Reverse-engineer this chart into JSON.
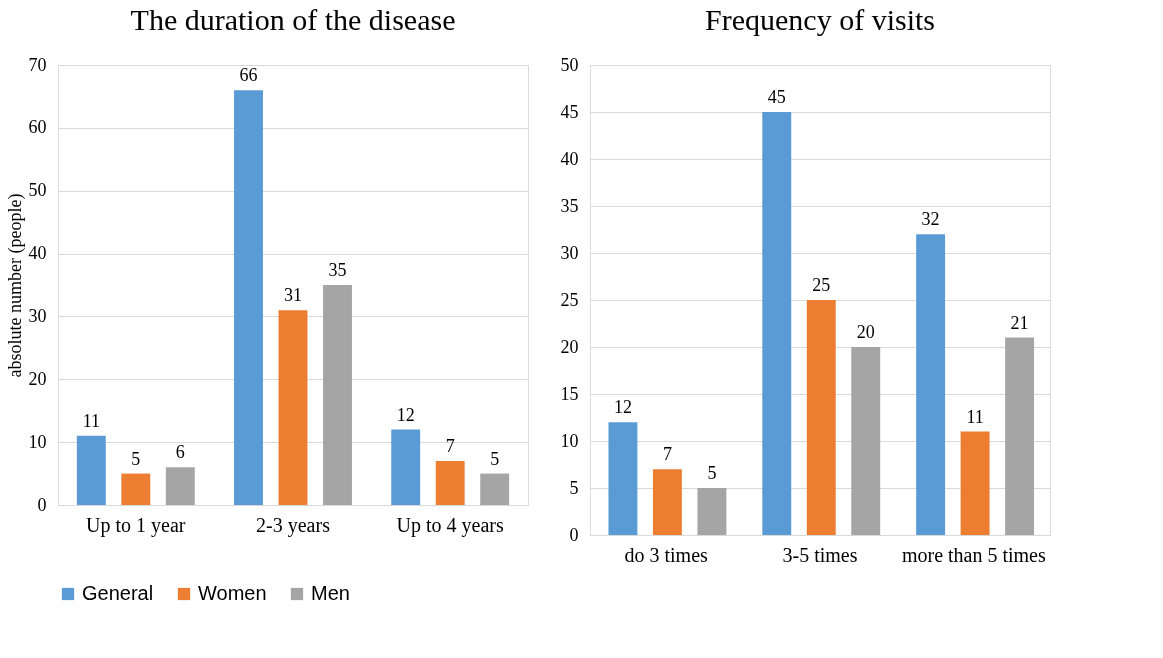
{
  "chart_data": [
    {
      "type": "bar",
      "title": "The duration of the disease",
      "ylabel": "absolute number (people)",
      "categories": [
        "Up to 1 year",
        "2-3 years",
        "Up to 4 years"
      ],
      "series": [
        {
          "name": "General",
          "color": "#5b9bd5",
          "values": [
            11,
            66,
            12
          ]
        },
        {
          "name": "Women",
          "color": "#ed7d31",
          "values": [
            5,
            31,
            7
          ]
        },
        {
          "name": "Men",
          "color": "#a5a5a5",
          "values": [
            6,
            35,
            5
          ]
        }
      ],
      "ylim": [
        0,
        70
      ],
      "yticks": [
        0,
        10,
        20,
        30,
        40,
        50,
        60,
        70
      ],
      "grid": "y",
      "data_labels": true,
      "legend": "bottom"
    },
    {
      "type": "bar",
      "title": "Frequency of visits",
      "categories": [
        "do 3 times",
        "3-5 times",
        "more than 5 times"
      ],
      "series": [
        {
          "name": "General",
          "color": "#5b9bd5",
          "values": [
            12,
            45,
            32
          ]
        },
        {
          "name": "Women",
          "color": "#ed7d31",
          "values": [
            7,
            25,
            11
          ]
        },
        {
          "name": "Men",
          "color": "#a5a5a5",
          "values": [
            5,
            20,
            21
          ]
        }
      ],
      "ylim": [
        0,
        50
      ],
      "yticks": [
        0,
        5,
        10,
        15,
        20,
        25,
        30,
        35,
        40,
        45,
        50
      ],
      "grid": "y",
      "data_labels": true,
      "legend": false
    }
  ]
}
